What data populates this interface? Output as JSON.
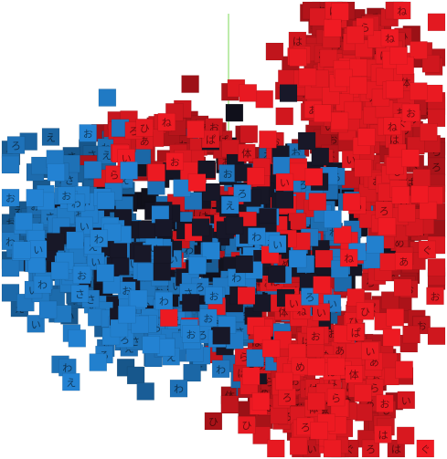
{
  "chart_data": {
    "type": "scatter",
    "title": "",
    "xlabel": "",
    "ylabel": "",
    "grid": false,
    "legend": "none",
    "axes": [
      {
        "axis": "y",
        "color": "#7ed957"
      },
      {
        "axis": "z",
        "color": "#2f6fd6"
      }
    ],
    "series": [
      {
        "color": "#c8161d",
        "glyphs": [
          "体",
          "あ",
          "ぱ",
          "は",
          "ら",
          "お",
          "い",
          "ね",
          "ろ",
          "は",
          "ぐ",
          "め",
          "ひ"
        ],
        "regions": [
          {
            "cx": 0.78,
            "cy": 0.15,
            "sx": 0.07,
            "sy": 0.08,
            "n": 330
          },
          {
            "cx": 0.87,
            "cy": 0.42,
            "sx": 0.06,
            "sy": 0.14,
            "n": 170
          },
          {
            "cx": 0.7,
            "cy": 0.78,
            "sx": 0.09,
            "sy": 0.1,
            "n": 300
          },
          {
            "cx": 0.36,
            "cy": 0.3,
            "sx": 0.08,
            "sy": 0.05,
            "n": 70
          },
          {
            "cx": 0.58,
            "cy": 0.47,
            "sx": 0.1,
            "sy": 0.12,
            "n": 130
          }
        ]
      },
      {
        "color": "#1d6db0",
        "glyphs": [
          "お",
          "い",
          "わ",
          "ろ",
          "お",
          "さ",
          "わ",
          "え"
        ],
        "regions": [
          {
            "cx": 0.17,
            "cy": 0.5,
            "sx": 0.09,
            "sy": 0.1,
            "n": 300
          },
          {
            "cx": 0.36,
            "cy": 0.68,
            "sx": 0.09,
            "sy": 0.06,
            "n": 150
          },
          {
            "cx": 0.66,
            "cy": 0.5,
            "sx": 0.09,
            "sy": 0.08,
            "n": 120
          },
          {
            "cx": 0.5,
            "cy": 0.6,
            "sx": 0.08,
            "sy": 0.09,
            "n": 80
          }
        ]
      },
      {
        "color": "#141422",
        "glyphs": [],
        "regions": [
          {
            "cx": 0.57,
            "cy": 0.52,
            "sx": 0.09,
            "sy": 0.1,
            "n": 200
          },
          {
            "cx": 0.28,
            "cy": 0.52,
            "sx": 0.1,
            "sy": 0.07,
            "n": 120
          }
        ]
      }
    ]
  }
}
